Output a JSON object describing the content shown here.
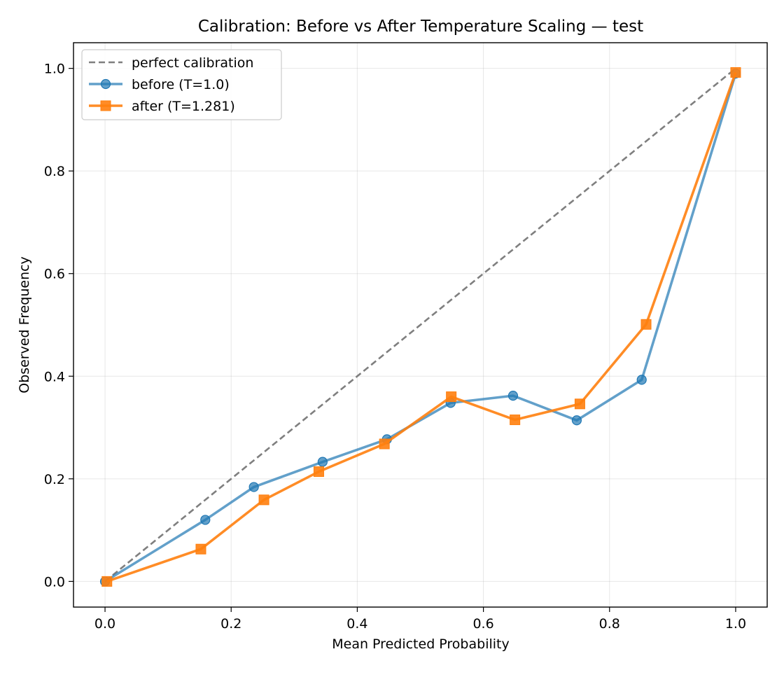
{
  "chart_data": {
    "type": "line",
    "title": "Calibration: Before vs After Temperature Scaling — test",
    "xlabel": "Mean Predicted Probability",
    "ylabel": "Observed Frequency",
    "xlim": [
      -0.05,
      1.05
    ],
    "ylim": [
      -0.05,
      1.05
    ],
    "xticks": [
      0.0,
      0.2,
      0.4,
      0.6,
      0.8,
      1.0
    ],
    "xtick_labels": [
      "0.0",
      "0.2",
      "0.4",
      "0.6",
      "0.8",
      "1.0"
    ],
    "yticks": [
      0.0,
      0.2,
      0.4,
      0.6,
      0.8,
      1.0
    ],
    "ytick_labels": [
      "0.0",
      "0.2",
      "0.4",
      "0.6",
      "0.8",
      "1.0"
    ],
    "grid": true,
    "legend_position": "top-left",
    "series": [
      {
        "name": "perfect calibration",
        "style": "dashed",
        "marker": "none",
        "color": "#7f7f7f",
        "x": [
          0.0,
          1.0
        ],
        "y": [
          0.0,
          1.0
        ]
      },
      {
        "name": "before (T=1.0)",
        "style": "solid",
        "marker": "circle",
        "color": "#1f77b4",
        "x": [
          0.0,
          0.159,
          0.236,
          0.345,
          0.447,
          0.548,
          0.647,
          0.748,
          0.851,
          1.0
        ],
        "y": [
          0.0,
          0.12,
          0.184,
          0.233,
          0.277,
          0.348,
          0.362,
          0.314,
          0.393,
          0.99
        ]
      },
      {
        "name": "after (T=1.281)",
        "style": "solid",
        "marker": "square",
        "color": "#ff7f0e",
        "x": [
          0.003,
          0.152,
          0.252,
          0.339,
          0.443,
          0.549,
          0.65,
          0.753,
          0.858,
          1.0
        ],
        "y": [
          0.0,
          0.063,
          0.159,
          0.214,
          0.268,
          0.36,
          0.315,
          0.346,
          0.501,
          0.992
        ]
      }
    ]
  }
}
